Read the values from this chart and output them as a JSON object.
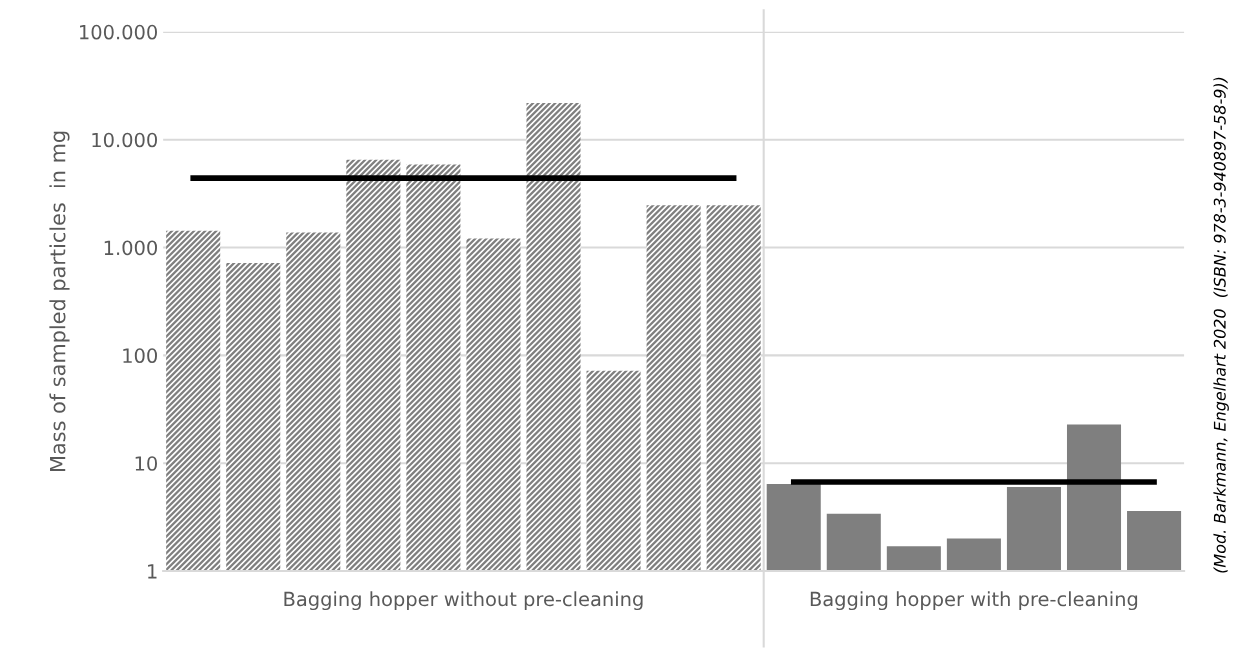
{
  "chart_data": {
    "type": "bar",
    "ylabel": "Mass of sampled particles  in mg",
    "categories": [
      null,
      null,
      null,
      null,
      null,
      null,
      null,
      null,
      null,
      null,
      null,
      null,
      null,
      null,
      null,
      null,
      null
    ],
    "series": [
      {
        "color": "#7f7f7f",
        "values": [
          1430,
          720,
          1380,
          6500,
          5900,
          1210,
          21900,
          72,
          2470,
          2470,
          null,
          null,
          null,
          null,
          null,
          null,
          null
        ]
      },
      {
        "color": "#7f7f7f",
        "values": [
          null,
          null,
          null,
          null,
          null,
          null,
          null,
          null,
          null,
          null,
          6.4,
          3.4,
          1.7,
          2.0,
          6.0,
          22.8,
          3.6
        ]
      },
      {
        "type": "line",
        "color": "#000000",
        "values": [
          4400,
          4400,
          4400,
          4400,
          4400,
          4400,
          4400,
          4400,
          4400,
          4400,
          null,
          null,
          null,
          null,
          null,
          null,
          null
        ]
      },
      {
        "type": "line",
        "color": "#000000",
        "values": [
          null,
          null,
          null,
          null,
          null,
          null,
          null,
          null,
          null,
          null,
          6.7,
          6.7,
          6.7,
          6.7,
          6.7,
          6.7,
          6.7
        ]
      }
    ],
    "log": "y",
    "ylim": [
      1,
      100000
    ],
    "yticks": [
      1,
      10,
      100,
      {
        "value": 1000,
        "label": "1.000"
      },
      {
        "value": 10000,
        "label": "10.000"
      },
      {
        "value": 100000,
        "label": "100.000"
      }
    ],
    "grid": "y",
    "marker": "none",
    "line_style": "solid",
    "annotations": [
      "Bagging hopper without pre-cleaning",
      "Bagging hopper with pre-cleaning",
      "(Mod. Barkmann, Engelhart 2020  (ISBN: 978-3-940897-58-9))"
    ]
  }
}
